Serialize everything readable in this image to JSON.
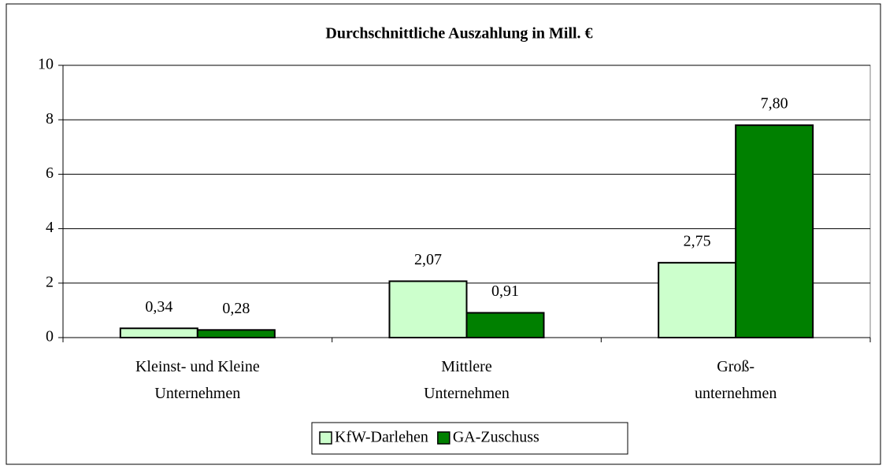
{
  "chart_data": {
    "type": "bar",
    "title": "Durchschnittliche Auszahlung in Mill. €",
    "categories": [
      "Kleinst- und Kleine\nUnternehmen",
      "Mittlere\nUnternehmen",
      "Groß-\nunternehmen"
    ],
    "series": [
      {
        "name": "KfW-Darlehen",
        "color": "#ccffcc",
        "values": [
          0.34,
          2.07,
          2.75
        ],
        "value_labels": [
          "0,34",
          "2,07",
          "2,75"
        ]
      },
      {
        "name": "GA-Zuschuss",
        "color": "#008000",
        "values": [
          0.28,
          0.91,
          7.8
        ],
        "value_labels": [
          "0,28",
          "0,91",
          "7,80"
        ]
      }
    ],
    "ylim": [
      0,
      10
    ],
    "yticks": [
      0,
      2,
      4,
      6,
      8,
      10
    ],
    "grid": true,
    "legend": "bottom"
  }
}
